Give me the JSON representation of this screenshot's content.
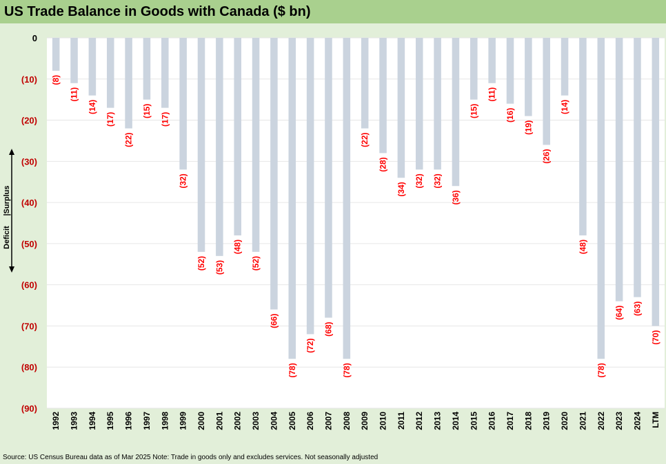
{
  "title": "US Trade Balance in Goods with Canada ($ bn)",
  "source": "Source: US Census Bureau data as of Mar 2025 Note: Trade in goods only and excludes services. Not seasonally adjusted",
  "side_annotation": {
    "surplus": "Surplus",
    "deficit": "Deficit",
    "divider": "|"
  },
  "colors": {
    "title_band": "#a9d08e",
    "background": "#e2efd9",
    "bar": "#cbd4df",
    "data_label": "#ff0000",
    "negative_tick": "#c00000"
  },
  "chart_data": {
    "type": "bar",
    "title": "US Trade Balance in Goods with Canada ($ bn)",
    "xlabel": "",
    "ylabel": "",
    "ylim": [
      -90,
      0
    ],
    "yticks": [
      0,
      -10,
      -20,
      -30,
      -40,
      -50,
      -60,
      -70,
      -80,
      -90
    ],
    "ytick_labels": [
      "0",
      "(10)",
      "(20)",
      "(30)",
      "(40)",
      "(50)",
      "(60)",
      "(70)",
      "(80)",
      "(90)"
    ],
    "grid": true,
    "legend": "none",
    "categories": [
      "1992",
      "1993",
      "1994",
      "1995",
      "1996",
      "1997",
      "1998",
      "1999",
      "2000",
      "2001",
      "2002",
      "2003",
      "2004",
      "2005",
      "2006",
      "2007",
      "2008",
      "2009",
      "2010",
      "2011",
      "2012",
      "2013",
      "2014",
      "2015",
      "2016",
      "2017",
      "2018",
      "2019",
      "2020",
      "2021",
      "2022",
      "2023",
      "2024",
      "LTM"
    ],
    "values": [
      -8,
      -11,
      -14,
      -17,
      -22,
      -15,
      -17,
      -32,
      -52,
      -53,
      -48,
      -52,
      -66,
      -78,
      -72,
      -68,
      -78,
      -22,
      -28,
      -34,
      -32,
      -32,
      -36,
      -15,
      -11,
      -16,
      -19,
      -26,
      -14,
      -48,
      -78,
      -64,
      -63,
      -70
    ],
    "data_labels": [
      "(8)",
      "(11)",
      "(14)",
      "(17)",
      "(22)",
      "(15)",
      "(17)",
      "(32)",
      "(52)",
      "(53)",
      "(48)",
      "(52)",
      "(66)",
      "(78)",
      "(72)",
      "(68)",
      "(78)",
      "(22)",
      "(28)",
      "(34)",
      "(32)",
      "(32)",
      "(36)",
      "(15)",
      "(11)",
      "(16)",
      "(19)",
      "(26)",
      "(14)",
      "(48)",
      "(78)",
      "(64)",
      "(63)",
      "(70)"
    ]
  }
}
